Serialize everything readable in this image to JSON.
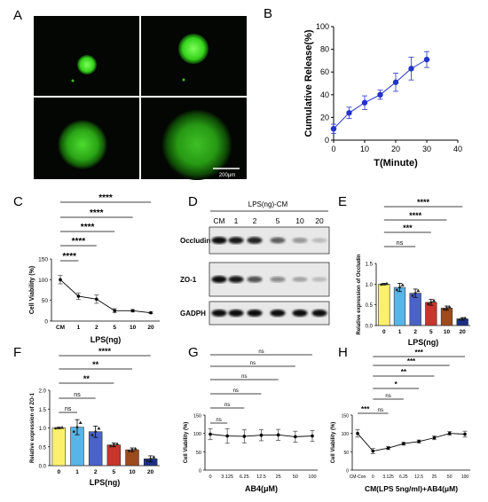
{
  "panel_letters": {
    "A": "A",
    "B": "B",
    "C": "C",
    "D": "D",
    "E": "E",
    "F": "F",
    "G": "G",
    "H": "H"
  },
  "panel_a": {
    "scale_bar": "200μm"
  },
  "sig": {
    "p4": "****",
    "p3": "***",
    "p2": "**",
    "p1": "*",
    "ns": "ns"
  },
  "colors": {
    "line_blue": "#2233cc",
    "bars": [
      "#fbf06a",
      "#57b5e8",
      "#4a63c7",
      "#c8352b",
      "#9d4a1c",
      "#1a2f8a"
    ]
  },
  "chart_data": [
    {
      "id": "B",
      "type": "line",
      "x": [
        0,
        5,
        10,
        15,
        20,
        25,
        30
      ],
      "y": [
        10,
        24,
        33,
        40,
        51,
        63,
        71
      ],
      "err": [
        4,
        5,
        6,
        4,
        8,
        10,
        7
      ],
      "xlabel": "T(Minute)",
      "ylabel": "Cumulative Release(%)",
      "xlim": [
        0,
        40
      ],
      "ylim": [
        0,
        100
      ],
      "xticks": [
        "0",
        "10",
        "20",
        "30",
        "40"
      ],
      "yticks": [
        "0",
        "20",
        "40",
        "60",
        "80",
        "100"
      ]
    },
    {
      "id": "C",
      "type": "line",
      "categories": [
        "CM",
        "1",
        "2",
        "5",
        "10",
        "20"
      ],
      "values": [
        100,
        60,
        53,
        25,
        25,
        20
      ],
      "err": [
        10,
        8,
        10,
        5,
        3,
        2
      ],
      "xlabel": "LPS(ng)",
      "ylabel": "Cell Viability (%)",
      "ylim": [
        0,
        150
      ],
      "yticks": [
        "0",
        "50",
        "100",
        "150"
      ]
    },
    {
      "id": "D",
      "type": "table",
      "header": "LPS(ng)-CM",
      "lanes": [
        "CM",
        "1",
        "2",
        "5",
        "10",
        "20"
      ],
      "rows": [
        {
          "label": "Occludin",
          "intensity": [
            1,
            0.95,
            0.9,
            0.65,
            0.4,
            0.2
          ]
        },
        {
          "label": "ZO-1",
          "intensity": [
            1,
            0.95,
            0.7,
            0.45,
            0.3,
            0.2
          ]
        },
        {
          "label": "GADPH",
          "intensity": [
            1,
            1,
            1,
            1,
            1,
            1
          ]
        }
      ]
    },
    {
      "id": "E",
      "type": "bar",
      "categories": [
        "0",
        "1",
        "2",
        "5",
        "10",
        "20"
      ],
      "values": [
        1.0,
        0.92,
        0.78,
        0.56,
        0.42,
        0.16
      ],
      "err": [
        0.02,
        0.1,
        0.1,
        0.07,
        0.05,
        0.03
      ],
      "xlabel": "LPS(ng)",
      "ylabel": "Relative expression of Occludin",
      "ylim": [
        0,
        1.5
      ],
      "yticks": [
        "0.0",
        "0.5",
        "1.0",
        "1.5"
      ],
      "brackets": [
        "ns",
        "***",
        "****",
        "****"
      ]
    },
    {
      "id": "F",
      "type": "bar",
      "categories": [
        "0",
        "1",
        "2",
        "5",
        "10",
        "20"
      ],
      "values": [
        1.0,
        1.02,
        0.9,
        0.55,
        0.42,
        0.18
      ],
      "err": [
        0.02,
        0.2,
        0.15,
        0.05,
        0.05,
        0.08
      ],
      "xlabel": "LPS(ng)",
      "ylabel": "Relative expression of ZO-1",
      "ylim": [
        0,
        2.0
      ],
      "yticks": [
        "0.0",
        "0.5",
        "1.0",
        "1.5",
        "2.0"
      ],
      "brackets": [
        "ns",
        "ns",
        "**",
        "**",
        "****"
      ]
    },
    {
      "id": "G",
      "type": "line",
      "categories": [
        "0",
        "3.125",
        "6.25",
        "12.5",
        "25",
        "50",
        "100"
      ],
      "values": [
        98,
        93,
        92,
        95,
        96,
        91,
        93
      ],
      "err": [
        15,
        20,
        18,
        15,
        15,
        15,
        15
      ],
      "xlabel": "AB4(μM)",
      "ylabel": "Cell Viability (%)",
      "ylim": [
        0,
        150
      ],
      "yticks": [
        "0",
        "50",
        "100",
        "150"
      ],
      "brackets": [
        "ns",
        "ns",
        "ns",
        "ns",
        "ns",
        "ns"
      ]
    },
    {
      "id": "H",
      "type": "line",
      "categories": [
        "CM-Con",
        "0",
        "3.125",
        "6.25",
        "12.5",
        "25",
        "50",
        "100"
      ],
      "values": [
        100,
        52,
        60,
        72,
        78,
        88,
        100,
        98
      ],
      "err": [
        10,
        7,
        4,
        4,
        4,
        5,
        5,
        8
      ],
      "xlabel": "CM(LPS 5ng/ml)+AB4(μM)",
      "ylabel": "Cell Viability (%)",
      "ylim": [
        0,
        150
      ],
      "yticks": [
        "0",
        "50",
        "100",
        "150"
      ],
      "brackets": [
        "***",
        "ns",
        "ns",
        "*",
        "**",
        "***",
        "***"
      ]
    }
  ]
}
